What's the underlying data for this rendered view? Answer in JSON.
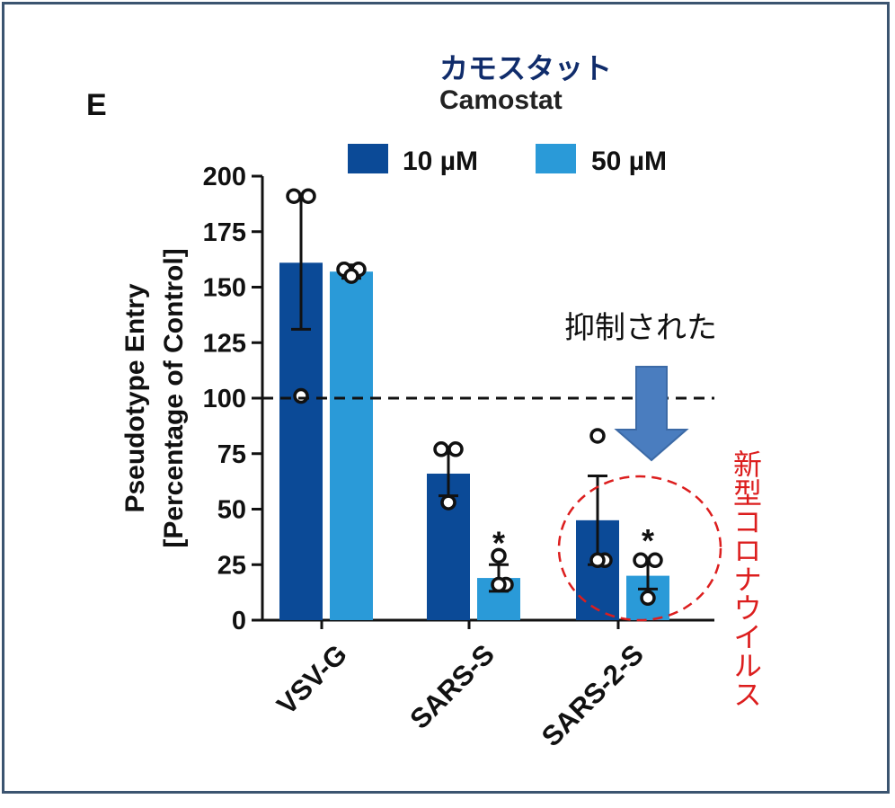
{
  "panel_label": "E",
  "title_japanese": "カモスタット",
  "title": "Camostat",
  "annotation_inhibited": "抑制された",
  "annotation_novel_coronavirus": "新型コロナウイルス",
  "colors": {
    "dark_blue": "#0b4a97",
    "light_blue": "#2a9ad8",
    "arrow": "#4a7dbf",
    "highlight_red": "#dc1e1e",
    "japanese_title": "#102c6b"
  },
  "chart_data": {
    "type": "bar",
    "categories": [
      "VSV-G",
      "SARS-S",
      "SARS-2-S"
    ],
    "ylabel_line1": "Pseudotype Entry",
    "ylabel_line2": "[Percentage of Control]",
    "ylim": [
      0,
      200
    ],
    "yticks": [
      0,
      25,
      50,
      75,
      100,
      125,
      150,
      175,
      200
    ],
    "reference_line": 100,
    "legend_position": "top",
    "series": [
      {
        "name": "10 µM",
        "values": [
          161,
          66,
          45
        ],
        "error": [
          30,
          10,
          20
        ],
        "points": [
          [
            191,
            191,
            101
          ],
          [
            77,
            77,
            53
          ],
          [
            83,
            27,
            27
          ]
        ],
        "significance": [
          "",
          "",
          ""
        ]
      },
      {
        "name": "50 µM",
        "values": [
          157,
          19,
          20
        ],
        "error": [
          3,
          6,
          6
        ],
        "points": [
          [
            158,
            158,
            155
          ],
          [
            29,
            16,
            16
          ],
          [
            27,
            27,
            10
          ]
        ],
        "significance": [
          "",
          "*",
          "*"
        ]
      }
    ]
  }
}
